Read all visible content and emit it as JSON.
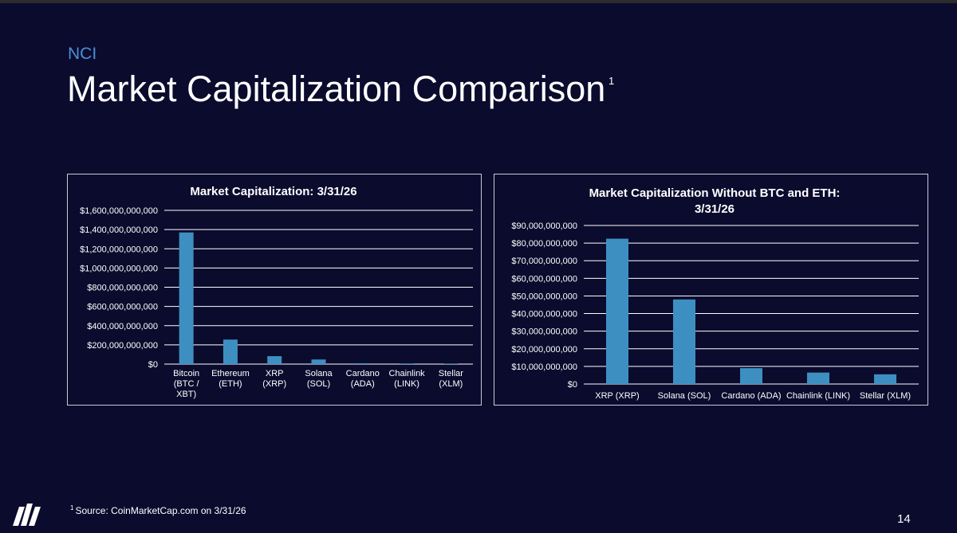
{
  "header": {
    "kicker": "NCI",
    "title": "Market Capitalization Comparison",
    "title_footnote_marker": "1"
  },
  "footer": {
    "footnote_marker": "1",
    "footnote_text": "Source: CoinMarketCap.com on 3/31/26",
    "page_number": "14",
    "logo_icon": "nci-logo-icon"
  },
  "colors": {
    "background": "#0b0b2e",
    "bar": "#3e8fc1",
    "kicker": "#4a90d9"
  },
  "chart_data": [
    {
      "type": "bar",
      "title_lines": [
        "Market Capitalization: 3/31/26"
      ],
      "categories": [
        [
          "Bitcoin",
          "(BTC /",
          "XBT)"
        ],
        [
          "Ethereum",
          "(ETH)"
        ],
        [
          "XRP",
          "(XRP)"
        ],
        [
          "Solana",
          "(SOL)"
        ],
        [
          "Cardano",
          "(ADA)"
        ],
        [
          "Chainlink",
          "(LINK)"
        ],
        [
          "Stellar",
          "(XLM)"
        ]
      ],
      "values": [
        1370000000000,
        255000000000,
        82500000000,
        48000000000,
        9000000000,
        6500000000,
        5500000000
      ],
      "ylim": [
        0,
        1600000000000
      ],
      "ytick_labels": [
        "$0",
        "$200,000,000,000",
        "$400,000,000,000",
        "$600,000,000,000",
        "$800,000,000,000",
        "$1,000,000,000,000",
        "$1,200,000,000,000",
        "$1,400,000,000,000",
        "$1,600,000,000,000"
      ],
      "grid": true
    },
    {
      "type": "bar",
      "title_lines": [
        "Market Capitalization Without BTC and ETH:",
        "3/31/26"
      ],
      "categories": [
        [
          "XRP (XRP)"
        ],
        [
          "Solana (SOL)"
        ],
        [
          "Cardano (ADA)"
        ],
        [
          "Chainlink (LINK)"
        ],
        [
          "Stellar (XLM)"
        ]
      ],
      "values": [
        82500000000,
        48000000000,
        9000000000,
        6500000000,
        5500000000
      ],
      "ylim": [
        0,
        90000000000
      ],
      "ytick_labels": [
        "$0",
        "$10,000,000,000",
        "$20,000,000,000",
        "$30,000,000,000",
        "$40,000,000,000",
        "$50,000,000,000",
        "$60,000,000,000",
        "$70,000,000,000",
        "$80,000,000,000",
        "$90,000,000,000"
      ],
      "grid": true
    }
  ]
}
